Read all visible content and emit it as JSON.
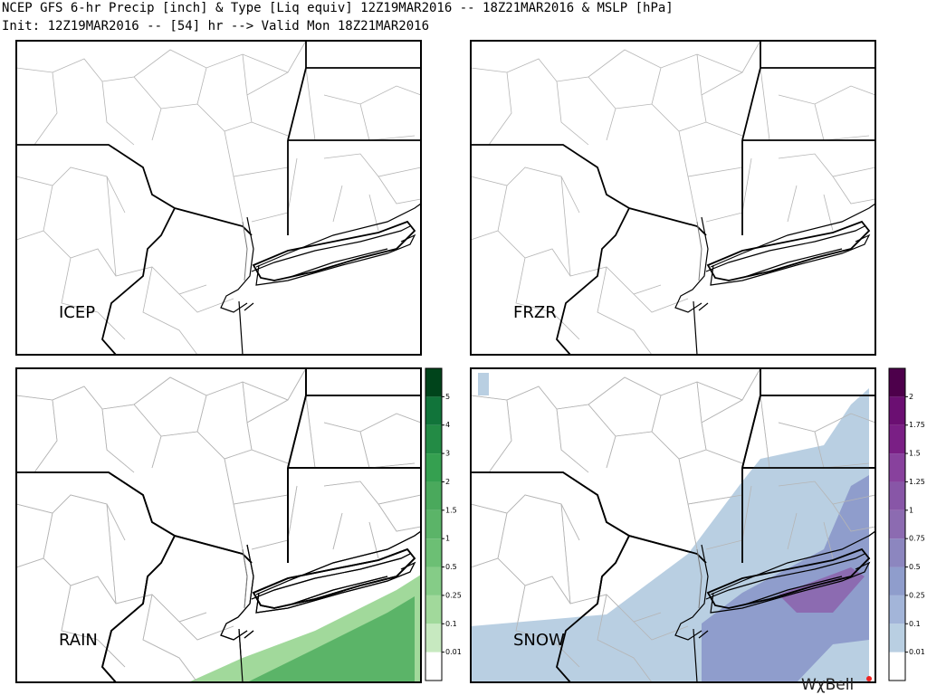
{
  "header": {
    "line1": "NCEP GFS 6-hr Precip [inch] & Type [Liq equiv] 12Z19MAR2016 -- 18Z21MAR2016 & MSLP [hPa]",
    "line2": "Init: 12Z19MAR2016 -- [54] hr --> Valid Mon 18Z21MAR2016"
  },
  "panels": [
    {
      "label": "ICEP"
    },
    {
      "label": "FRZR"
    },
    {
      "label": "RAIN"
    },
    {
      "label": "SNOW"
    }
  ],
  "colorbars": [
    {
      "colors": [
        "#ffffff",
        "#c7e9c0",
        "#a1d99b",
        "#85cc87",
        "#6cbf74",
        "#5bb468",
        "#4aa95c",
        "#35a050",
        "#238b45",
        "#11743a",
        "#00441b"
      ],
      "ticks": [
        0.01,
        0.1,
        0.25,
        0.5,
        1,
        1.5,
        2,
        3,
        4,
        5
      ]
    },
    {
      "colors": [
        "#ffffff",
        "#b9cfe2",
        "#a3b5d9",
        "#8f9dcc",
        "#8c86bf",
        "#8c6bb1",
        "#8856a7",
        "#88419d",
        "#7a1f85",
        "#6b0f72",
        "#4d004b"
      ],
      "ticks": [
        0.01,
        0.1,
        0.25,
        0.5,
        0.75,
        1,
        1.25,
        1.5,
        1.75,
        2
      ]
    }
  ],
  "logo": "WχBell"
}
